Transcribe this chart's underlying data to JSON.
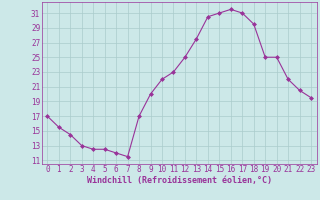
{
  "x": [
    0,
    1,
    2,
    3,
    4,
    5,
    6,
    7,
    8,
    9,
    10,
    11,
    12,
    13,
    14,
    15,
    16,
    17,
    18,
    19,
    20,
    21,
    22,
    23
  ],
  "y": [
    17,
    15.5,
    14.5,
    13,
    12.5,
    12.5,
    12,
    11.5,
    17,
    20,
    22,
    23,
    25,
    27.5,
    30.5,
    31,
    31.5,
    31,
    29.5,
    25,
    25,
    22,
    20.5,
    19.5
  ],
  "line_color": "#993399",
  "marker": "D",
  "marker_size": 2,
  "bg_color": "#cce8e8",
  "grid_color": "#aacccc",
  "xlabel": "Windchill (Refroidissement éolien,°C)",
  "xlabel_color": "#993399",
  "tick_color": "#993399",
  "yticks": [
    11,
    13,
    15,
    17,
    19,
    21,
    23,
    25,
    27,
    29,
    31
  ],
  "xticks": [
    0,
    1,
    2,
    3,
    4,
    5,
    6,
    7,
    8,
    9,
    10,
    11,
    12,
    13,
    14,
    15,
    16,
    17,
    18,
    19,
    20,
    21,
    22,
    23
  ],
  "ylim": [
    10.5,
    32.5
  ],
  "xlim": [
    -0.5,
    23.5
  ],
  "tick_fontsize": 5.5,
  "xlabel_fontsize": 6.0,
  "linewidth": 0.8
}
